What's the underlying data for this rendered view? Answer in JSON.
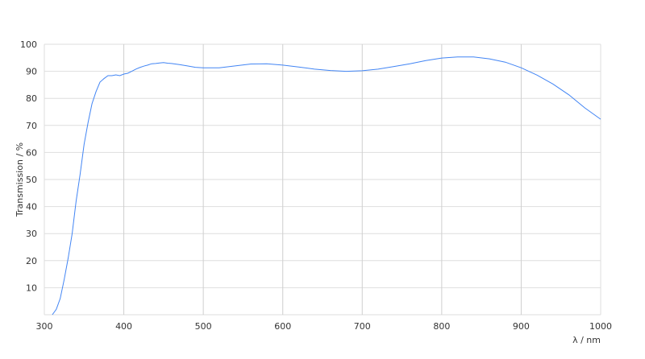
{
  "chart_data": {
    "type": "line",
    "title": "",
    "xlabel": "λ / nm",
    "ylabel": "Transmission / %",
    "xlim": [
      300,
      1000
    ],
    "ylim": [
      0,
      100
    ],
    "xticks": [
      "300",
      "400",
      "500",
      "600",
      "700",
      "800",
      "900",
      "1000"
    ],
    "yticks": [
      "10",
      "20",
      "30",
      "40",
      "50",
      "60",
      "70",
      "80",
      "90",
      "100"
    ],
    "grid": true,
    "line_color": "#4285f4",
    "series": [
      {
        "x": [
          310,
          315,
          320,
          325,
          330,
          335,
          340,
          345,
          350,
          355,
          360,
          365,
          370,
          375,
          380,
          385,
          390,
          395,
          400,
          405,
          410,
          415,
          420,
          425,
          430,
          435,
          440,
          445,
          450,
          455,
          460,
          470,
          480,
          490,
          500,
          520,
          540,
          560,
          580,
          600,
          620,
          640,
          660,
          680,
          700,
          720,
          740,
          760,
          780,
          800,
          820,
          840,
          860,
          880,
          900,
          920,
          940,
          960,
          980,
          1000
        ],
        "y": [
          0,
          2,
          6,
          13,
          21,
          30,
          42,
          52,
          63,
          71,
          78,
          82.5,
          86,
          87.3,
          88.4,
          88.4,
          88.7,
          88.4,
          89,
          89.3,
          90,
          90.8,
          91.4,
          91.9,
          92.3,
          92.8,
          92.9,
          93.1,
          93.2,
          93,
          92.9,
          92.5,
          92,
          91.5,
          91.3,
          91.3,
          92,
          92.7,
          92.8,
          92.3,
          91.6,
          90.8,
          90.3,
          90,
          90.2,
          90.8,
          91.8,
          92.8,
          94,
          94.9,
          95.3,
          95.3,
          94.6,
          93.4,
          91.3,
          88.6,
          85.3,
          81.3,
          76.5,
          72.3
        ]
      }
    ]
  }
}
